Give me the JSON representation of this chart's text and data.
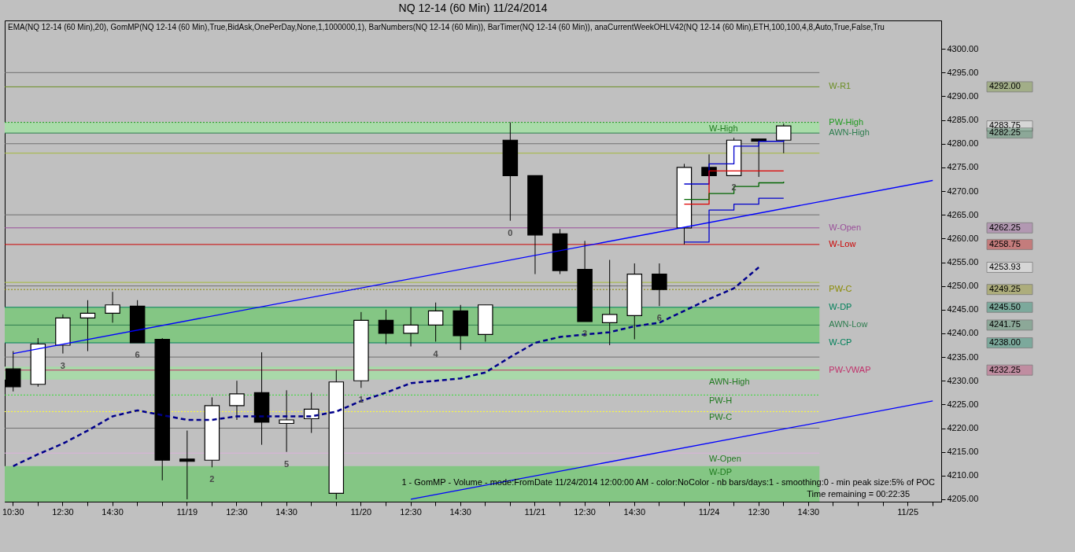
{
  "chart_data": {
    "type": "candlestick",
    "title": "NQ 12-14 (60 Min)  11/24/2014",
    "subtitle": "EMA(NQ 12-14 (60 Min),20), GomMP(NQ 12-14 (60 Min),True,BidAsk,OnePerDay,None,1,1000000,1), BarNumbers(NQ 12-14 (60 Min)), BarTimer(NQ 12-14 (60 Min)), anaCurrentWeekOHLV42(NQ 12-14 (60 Min),ETH,100,100,4,8,Auto,True,False,Tru",
    "categories": [
      "10:30",
      null,
      "12:30",
      null,
      "14:30",
      null,
      null,
      "11/19",
      null,
      "12:30",
      null,
      "14:30",
      null,
      null,
      "11/20",
      null,
      "12:30",
      null,
      "14:30",
      null,
      null,
      "11/21",
      null,
      "12:30",
      null,
      "14:30",
      null,
      null,
      "11/24",
      null,
      "12:30",
      null,
      "14:30",
      null,
      null,
      null,
      "11/25",
      null
    ],
    "ohlc": [
      [
        4232.5,
        4236.25,
        4227.75,
        4228.75
      ],
      [
        4229.25,
        4239,
        4228.75,
        4237.75
      ],
      [
        4237.5,
        4244,
        4235.75,
        4243.25
      ],
      [
        4243.25,
        4247,
        4236.25,
        4244.25
      ],
      [
        4244.25,
        4248.75,
        4242.25,
        4246
      ],
      [
        4245.75,
        4247,
        4238,
        4238
      ],
      [
        4238.75,
        4239,
        4209,
        4213.25
      ],
      [
        4213.5,
        4219.5,
        4205,
        4213
      ],
      [
        4213.25,
        4226.5,
        4211.75,
        4224.75
      ],
      [
        4224.75,
        4230,
        4221.75,
        4227.25
      ],
      [
        4227.5,
        4236,
        4216.5,
        4221.25
      ],
      [
        4221,
        4228,
        4215,
        4221.75
      ],
      [
        4222,
        4227.5,
        4219,
        4224
      ],
      [
        4206.25,
        4232.25,
        4205,
        4229.75
      ],
      [
        4230,
        4244.5,
        4228.5,
        4242.75
      ],
      [
        4242.75,
        4245,
        4237.75,
        4240
      ],
      [
        4240,
        4245.5,
        4237.25,
        4241.75
      ],
      [
        4241.75,
        4246.5,
        4238.25,
        4244.75
      ],
      [
        4244.75,
        4246,
        4236.5,
        4239.5
      ],
      [
        4239.75,
        4246,
        4238.25,
        4246
      ],
      [
        4280.75,
        4284.5,
        4263.75,
        4273.25
      ],
      [
        4273.25,
        4273.25,
        4252.5,
        4260.75
      ],
      [
        4261,
        4262,
        4252.5,
        4253.25
      ],
      [
        4253.5,
        4259.5,
        4242.5,
        4242.5
      ],
      [
        4242.25,
        4255.5,
        4237.5,
        4244
      ],
      [
        4243.75,
        4254.75,
        4238.75,
        4252.5
      ],
      [
        4252.5,
        4254.75,
        4245.75,
        4249.25
      ],
      [
        4262.25,
        4275.75,
        4258.75,
        4275
      ],
      [
        4275,
        4277.75,
        4273.25,
        4273.25
      ],
      [
        4273.25,
        4281.25,
        4273.25,
        4280.75
      ],
      [
        4281,
        4281,
        4273,
        4280.5
      ],
      [
        4280.75,
        4284.25,
        4278,
        4283.75
      ],
      null,
      null,
      null,
      null,
      null,
      null
    ],
    "value_labels": [
      null,
      null,
      "3",
      null,
      null,
      "6",
      null,
      null,
      "2",
      null,
      null,
      "5",
      null,
      null,
      "1",
      null,
      null,
      "4",
      null,
      null,
      "0",
      null,
      null,
      "3",
      null,
      null,
      "6",
      null,
      null,
      "2",
      null,
      null,
      null,
      null,
      null,
      null,
      null,
      null
    ],
    "series": [
      {
        "type": "line",
        "color": "#00008b",
        "line_style": "dashed",
        "values": [
          4212,
          4214.5,
          4216.75,
          4219.5,
          4222.5,
          4223.75,
          4222.75,
          4221.75,
          4221.75,
          4222.5,
          4222.5,
          4222.5,
          4222.5,
          4223.5,
          4225.75,
          4227.5,
          4229.5,
          4230,
          4230.5,
          4231.75,
          4235,
          4238,
          4239.25,
          4239.75,
          4240.25,
          4241.5,
          4242.25,
          4244.75,
          4247.25,
          4249.5,
          4253.93,
          null,
          null,
          null,
          null,
          null,
          null,
          null
        ]
      },
      {
        "type": "line",
        "color": "#0000ff",
        "values": [
          4235.75,
          null,
          null,
          null,
          null,
          null,
          null,
          null,
          null,
          null,
          null,
          null,
          null,
          null,
          null,
          null,
          null,
          null,
          null,
          null,
          null,
          null,
          null,
          null,
          null,
          null,
          null,
          null,
          null,
          null,
          null,
          null,
          null,
          null,
          null,
          null,
          null,
          4272.25
        ]
      },
      {
        "type": "line",
        "color": "#0000ff",
        "values": [
          null,
          null,
          null,
          null,
          null,
          null,
          null,
          null,
          null,
          null,
          null,
          null,
          null,
          null,
          null,
          null,
          4205,
          null,
          null,
          null,
          null,
          null,
          null,
          null,
          null,
          null,
          null,
          null,
          null,
          null,
          null,
          null,
          null,
          null,
          null,
          null,
          null,
          4225.75
        ]
      },
      {
        "type": "step",
        "color": "#0000cc",
        "values": [
          null,
          null,
          null,
          null,
          null,
          null,
          null,
          null,
          null,
          null,
          null,
          null,
          null,
          null,
          null,
          null,
          null,
          null,
          null,
          null,
          null,
          null,
          null,
          null,
          null,
          null,
          null,
          4271.5,
          4275.75,
          4279.5,
          4280.5,
          4280.75,
          null,
          null,
          null,
          null,
          null,
          null
        ]
      },
      {
        "type": "step",
        "color": "#dd0000",
        "values": [
          null,
          null,
          null,
          null,
          null,
          null,
          null,
          null,
          null,
          null,
          null,
          null,
          null,
          null,
          null,
          null,
          null,
          null,
          null,
          null,
          null,
          null,
          null,
          null,
          null,
          null,
          null,
          4267.25,
          4274.25,
          4274.25,
          4274.25,
          4274.25,
          null,
          null,
          null,
          null,
          null,
          null
        ]
      },
      {
        "type": "step",
        "color": "#006400",
        "values": [
          null,
          null,
          null,
          null,
          null,
          null,
          null,
          null,
          null,
          null,
          null,
          null,
          null,
          null,
          null,
          null,
          null,
          null,
          null,
          null,
          null,
          null,
          null,
          null,
          null,
          null,
          null,
          4268.25,
          4269.5,
          4271,
          4271.75,
          4272,
          null,
          null,
          null,
          null,
          null,
          null
        ]
      },
      {
        "type": "step",
        "color": "#0000cc",
        "values": [
          null,
          null,
          null,
          null,
          null,
          null,
          null,
          null,
          null,
          null,
          null,
          null,
          null,
          null,
          null,
          null,
          null,
          null,
          null,
          null,
          null,
          null,
          null,
          null,
          null,
          null,
          null,
          4259.25,
          4266,
          4267.25,
          4268.5,
          4268.5,
          null,
          null,
          null,
          null,
          null,
          null
        ]
      }
    ],
    "ylim": [
      4204.5,
      4306
    ],
    "yticks": [
      {
        "value": 4205,
        "label": "4205.00"
      },
      {
        "value": 4210,
        "label": "4210.00"
      },
      {
        "value": 4215,
        "label": "4215.00"
      },
      {
        "value": 4220,
        "label": "4220.00"
      },
      {
        "value": 4225,
        "label": "4225.00"
      },
      {
        "value": 4230,
        "label": "4230.00"
      },
      {
        "value": 4235,
        "label": "4235.00"
      },
      {
        "value": 4240,
        "label": "4240.00"
      },
      {
        "value": 4245,
        "label": "4245.00"
      },
      {
        "value": 4250,
        "label": "4250.00"
      },
      {
        "value": 4255,
        "label": "4255.00"
      },
      {
        "value": 4260,
        "label": "4260.00"
      },
      {
        "value": 4265,
        "label": "4265.00"
      },
      {
        "value": 4270,
        "label": "4270.00"
      },
      {
        "value": 4275,
        "label": "4275.00"
      },
      {
        "value": 4280,
        "label": "4280.00"
      },
      {
        "value": 4285,
        "label": "4285.00"
      },
      {
        "value": 4290,
        "label": "4290.00"
      },
      {
        "value": 4295,
        "label": "4295.00"
      },
      {
        "value": 4300,
        "label": "4300.00"
      }
    ],
    "bands": [
      {
        "axis": "y",
        "from": 4230.25,
        "to": 4233,
        "color": "#a9d9a9"
      },
      {
        "axis": "y",
        "from": 4204.5,
        "to": 4212,
        "color": "#84c684"
      },
      {
        "axis": "y",
        "from": 4238,
        "to": 4245.5,
        "color": "#84c684"
      },
      {
        "axis": "y",
        "from": 4282.25,
        "to": 4284.5,
        "color": "#a9dca9"
      }
    ],
    "ref_lines": [
      {
        "axis": "y",
        "value": 4220,
        "color": "#707070"
      },
      {
        "axis": "y",
        "value": 4235,
        "color": "#707070"
      },
      {
        "axis": "y",
        "value": 4250,
        "color": "#707070"
      },
      {
        "axis": "y",
        "value": 4265,
        "color": "#707070"
      },
      {
        "axis": "y",
        "value": 4280,
        "color": "#707070"
      },
      {
        "axis": "y",
        "value": 4295,
        "color": "#707070"
      },
      {
        "axis": "y",
        "value": 4278,
        "color": "#a4b83a"
      },
      {
        "axis": "y",
        "value": 4250.75,
        "color": "#a4b83a"
      },
      {
        "axis": "y",
        "value": 4227,
        "color": "#33dd33",
        "line_style": "dotted"
      },
      {
        "axis": "y",
        "value": 4223.5,
        "color": "#ffff33",
        "line_style": "dotted"
      },
      {
        "axis": "y",
        "value": 4214.75,
        "color": "#dcb0dc"
      },
      {
        "axis": "y",
        "value": 4292,
        "label": "W-R1",
        "color": "#6b8e23"
      },
      {
        "axis": "y",
        "value": 4284.5,
        "label": "PW-High",
        "color": "#1f9a1f",
        "line_style": "dotted"
      },
      {
        "axis": "y",
        "value": 4282.25,
        "label": "AWN-High",
        "color": "#2e7d4f"
      },
      {
        "axis": "y",
        "value": 4262.25,
        "label": "W-Open",
        "color": "#9a4f9a"
      },
      {
        "axis": "y",
        "value": 4258.75,
        "label": "W-Low",
        "color": "#cc0000"
      },
      {
        "axis": "y",
        "value": 4249.25,
        "label": "PW-C",
        "color": "#8a8a00",
        "line_style": "dotted"
      },
      {
        "axis": "y",
        "value": 4245.5,
        "label": "W-DP",
        "color": "#00805a"
      },
      {
        "axis": "y",
        "value": 4241.75,
        "label": "AWN-Low",
        "color": "#2e7d4f"
      },
      {
        "axis": "y",
        "value": 4238,
        "label": "W-CP",
        "color": "#00805a"
      },
      {
        "axis": "y",
        "value": 4232.25,
        "label": "PW-VWAP",
        "color": "#c0306a"
      }
    ],
    "annotations": [
      "4292.00",
      "4283.75",
      "4282.25",
      "4262.25",
      "4258.75",
      "4253.93",
      "4249.25",
      "4245.50",
      "4241.75",
      "4238.00",
      "4232.25",
      {
        "text": "W-High",
        "x": "11/24",
        "y": 4284.5
      },
      {
        "text": "AWN-High",
        "x": "11/24",
        "y": 4231
      },
      {
        "text": "PW-H",
        "x": "11/24",
        "y": 4227
      },
      {
        "text": "PW-C",
        "x": "11/24",
        "y": 4223.5
      },
      {
        "text": "W-Open",
        "x": "11/24",
        "y": 4214.75
      },
      {
        "text": "W-DP",
        "x": "11/24",
        "y": 4212
      },
      "1 - GomMP - Volume - mode:FromDate 11/24/2014 12:00:00 AM - color:NoColor - nb bars/days:1 - smoothing:0 - min peak size:5% of POC",
      "Time remaining = 00:22:35"
    ]
  }
}
